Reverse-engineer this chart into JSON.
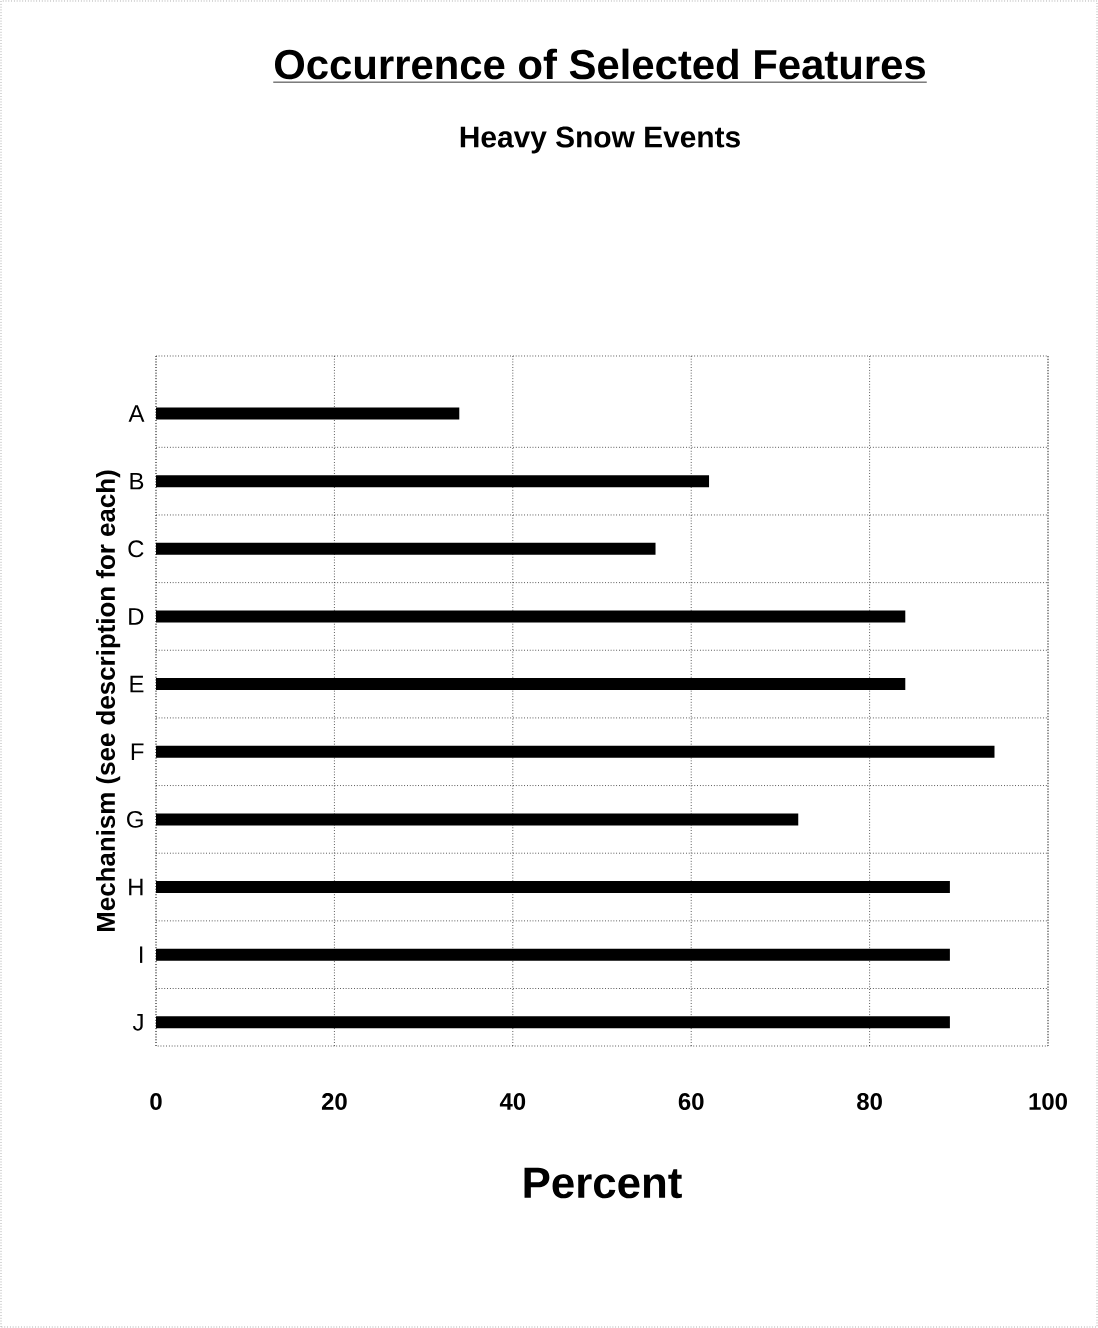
{
  "chart_data": {
    "type": "bar",
    "orientation": "horizontal",
    "title": "Occurrence of Selected Features",
    "subtitle": "Heavy Snow Events",
    "xlabel": "Percent",
    "ylabel": "Mechanism (see description for each)",
    "categories": [
      "A",
      "B",
      "C",
      "D",
      "E",
      "F",
      "G",
      "H",
      "I",
      "J"
    ],
    "values": [
      34,
      62,
      56,
      84,
      84,
      94,
      72,
      89,
      89,
      89
    ],
    "color": "#000000",
    "xlim": [
      0,
      100
    ],
    "xticks": [
      0,
      20,
      40,
      60,
      80,
      100
    ],
    "grid": true
  }
}
